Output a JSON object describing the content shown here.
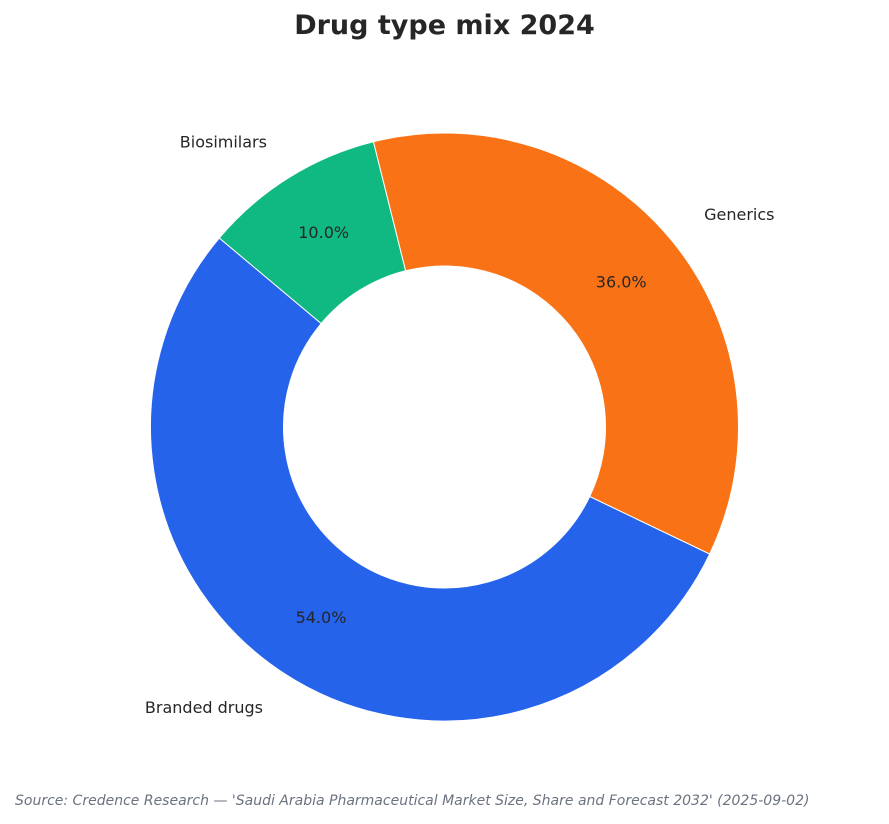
{
  "chart_data": {
    "type": "pie",
    "style": "donut",
    "title": "Drug type mix 2024",
    "slices": [
      {
        "label": "Generics",
        "value": 36.0,
        "pct_label": "36.0%",
        "color": "#f97316"
      },
      {
        "label": "Branded drugs",
        "value": 54.0,
        "pct_label": "54.0%",
        "color": "#2563eb"
      },
      {
        "label": "Biosimilars",
        "value": 10.0,
        "pct_label": "10.0%",
        "color": "#10b981"
      }
    ]
  },
  "source": "Source: Credence Research — 'Saudi Arabia Pharmaceutical Market Size, Share and Forecast 2032' (2025-09-02)"
}
